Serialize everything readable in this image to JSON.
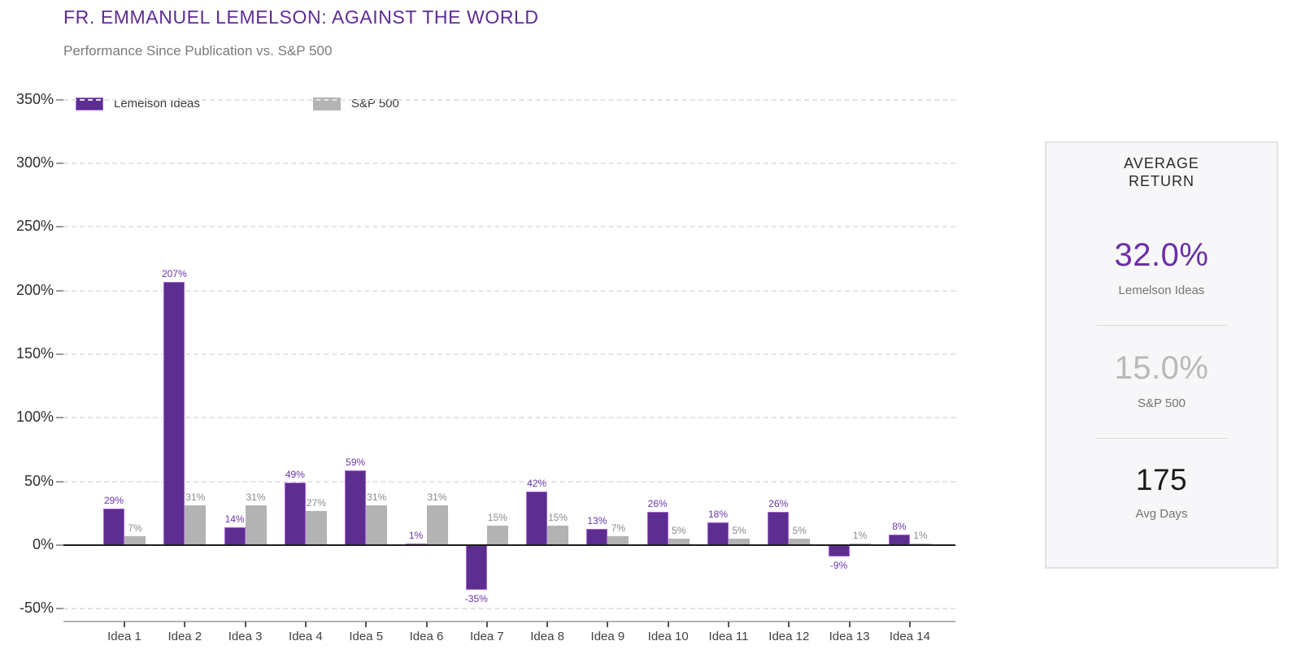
{
  "title": "FR. EMMANUEL LEMELSON: AGAINST THE WORLD",
  "subtitle": "Performance Since Publication vs. S&P 500",
  "chart_data": {
    "type": "bar",
    "title": "FR. EMMANUEL LEMELSON: AGAINST THE WORLD",
    "subtitle": "Performance Since Publication vs. S&P 500",
    "categories": [
      "Idea 1",
      "Idea 2",
      "Idea 3",
      "Idea 4",
      "Idea 5",
      "Idea 6",
      "Idea 7",
      "Idea 8",
      "Idea 9",
      "Idea 10",
      "Idea 11",
      "Idea 12",
      "Idea 13",
      "Idea 14"
    ],
    "series": [
      {
        "name": "Lemelson Ideas",
        "color": "#5c2e90",
        "stroke": "#a865d6",
        "label_color": "#6a35a8",
        "values": [
          29,
          207,
          14,
          49,
          59,
          1,
          -35,
          42,
          13,
          26,
          18,
          26,
          -9,
          8
        ]
      },
      {
        "name": "S&P 500",
        "color": "#b3b3b3",
        "stroke": "#b3b3b3",
        "label_color": "#8a8a8a",
        "values": [
          7,
          31,
          31,
          27,
          31,
          31,
          15,
          15,
          7,
          5,
          5,
          5,
          1,
          1
        ]
      }
    ],
    "value_suffix": "%",
    "ytick_values": [
      350,
      300,
      250,
      200,
      150,
      100,
      50,
      0,
      -50
    ],
    "ytick_labels": [
      "350%",
      "300%",
      "250%",
      "200%",
      "150%",
      "100%",
      "50%",
      "0%",
      "-50%"
    ],
    "ylim": [
      -50,
      350
    ],
    "xlabel": "",
    "ylabel": "",
    "grid": "horizontal-dashed",
    "legend_position": "top-left"
  },
  "summary_panel": {
    "title_line1": "AVERAGE",
    "title_line2": "RETURN",
    "stats": [
      {
        "value": "32.0%",
        "label": "Lemelson Ideas",
        "value_color": "#6b2fa5"
      },
      {
        "value": "15.0%",
        "label": "S&P 500",
        "value_color": "#b9b9b9"
      },
      {
        "value": "175",
        "label": "Avg Days",
        "value_color": "#1a1a1a"
      }
    ]
  },
  "colors": {
    "title": "#5e2c94",
    "subtitle": "#7a7a7a",
    "lemelson_bar": "#5c2e90",
    "lemelson_bar_stroke": "#a865d6",
    "sp500_bar": "#b3b3b3",
    "zero_line": "#1d1d1d",
    "gridline": "#e4e4e6",
    "panel_bg": "#f7f7f9"
  }
}
